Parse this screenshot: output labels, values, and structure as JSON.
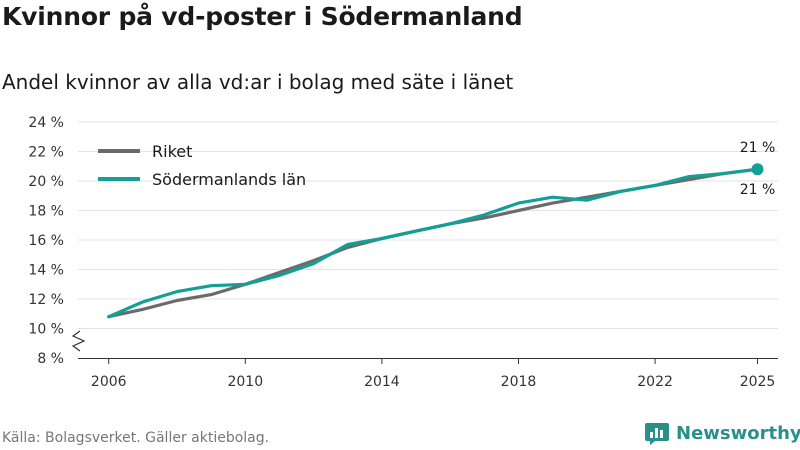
{
  "header": {
    "title": "Kvinnor på vd-poster i Södermanland",
    "subtitle": "Andel kvinnor av alla vd:ar i bolag med säte i länet"
  },
  "footer": {
    "source": "Källa: Bolagsverket. Gäller aktiebolag.",
    "brand": "Newsworthy"
  },
  "colors": {
    "riket": "#6b6b6b",
    "sodermanland": "#12a096",
    "grid": "#e3e3e3",
    "brand": "#2a8f8a"
  },
  "chart_data": {
    "type": "line",
    "title": "Kvinnor på vd-poster i Södermanland",
    "subtitle": "Andel kvinnor av alla vd:ar i bolag med säte i länet",
    "xlabel": "",
    "ylabel": "",
    "x": [
      2006,
      2007,
      2008,
      2009,
      2010,
      2011,
      2012,
      2013,
      2014,
      2015,
      2016,
      2017,
      2018,
      2019,
      2020,
      2021,
      2022,
      2023,
      2024,
      2025
    ],
    "xticks": [
      2006,
      2010,
      2014,
      2018,
      2022,
      2025
    ],
    "xtick_labels": [
      "2006",
      "2010",
      "2014",
      "2018",
      "2022",
      "2025"
    ],
    "ylim": [
      8,
      24
    ],
    "yticks": [
      8,
      10,
      12,
      14,
      16,
      18,
      20,
      22,
      24
    ],
    "ytick_labels": [
      "8 %",
      "10 %",
      "12 %",
      "14 %",
      "16 %",
      "18 %",
      "20 %",
      "22 %",
      "24 %"
    ],
    "axis_break": true,
    "grid": true,
    "legend_position": "top-left",
    "series": [
      {
        "name": "Riket",
        "color": "#6b6b6b",
        "values": [
          10.8,
          11.3,
          11.9,
          12.3,
          13.0,
          13.8,
          14.6,
          15.5,
          16.1,
          16.6,
          17.1,
          17.5,
          18.0,
          18.5,
          18.9,
          19.3,
          19.7,
          20.1,
          20.5,
          20.8
        ],
        "end_label": "21 %"
      },
      {
        "name": "Södermanlands län",
        "color": "#12a096",
        "values": [
          10.8,
          11.8,
          12.5,
          12.9,
          13.0,
          13.6,
          14.4,
          15.7,
          16.1,
          16.6,
          17.1,
          17.7,
          18.5,
          18.9,
          18.7,
          19.3,
          19.7,
          20.3,
          20.5,
          20.8
        ],
        "end_label": "21 %"
      }
    ]
  }
}
